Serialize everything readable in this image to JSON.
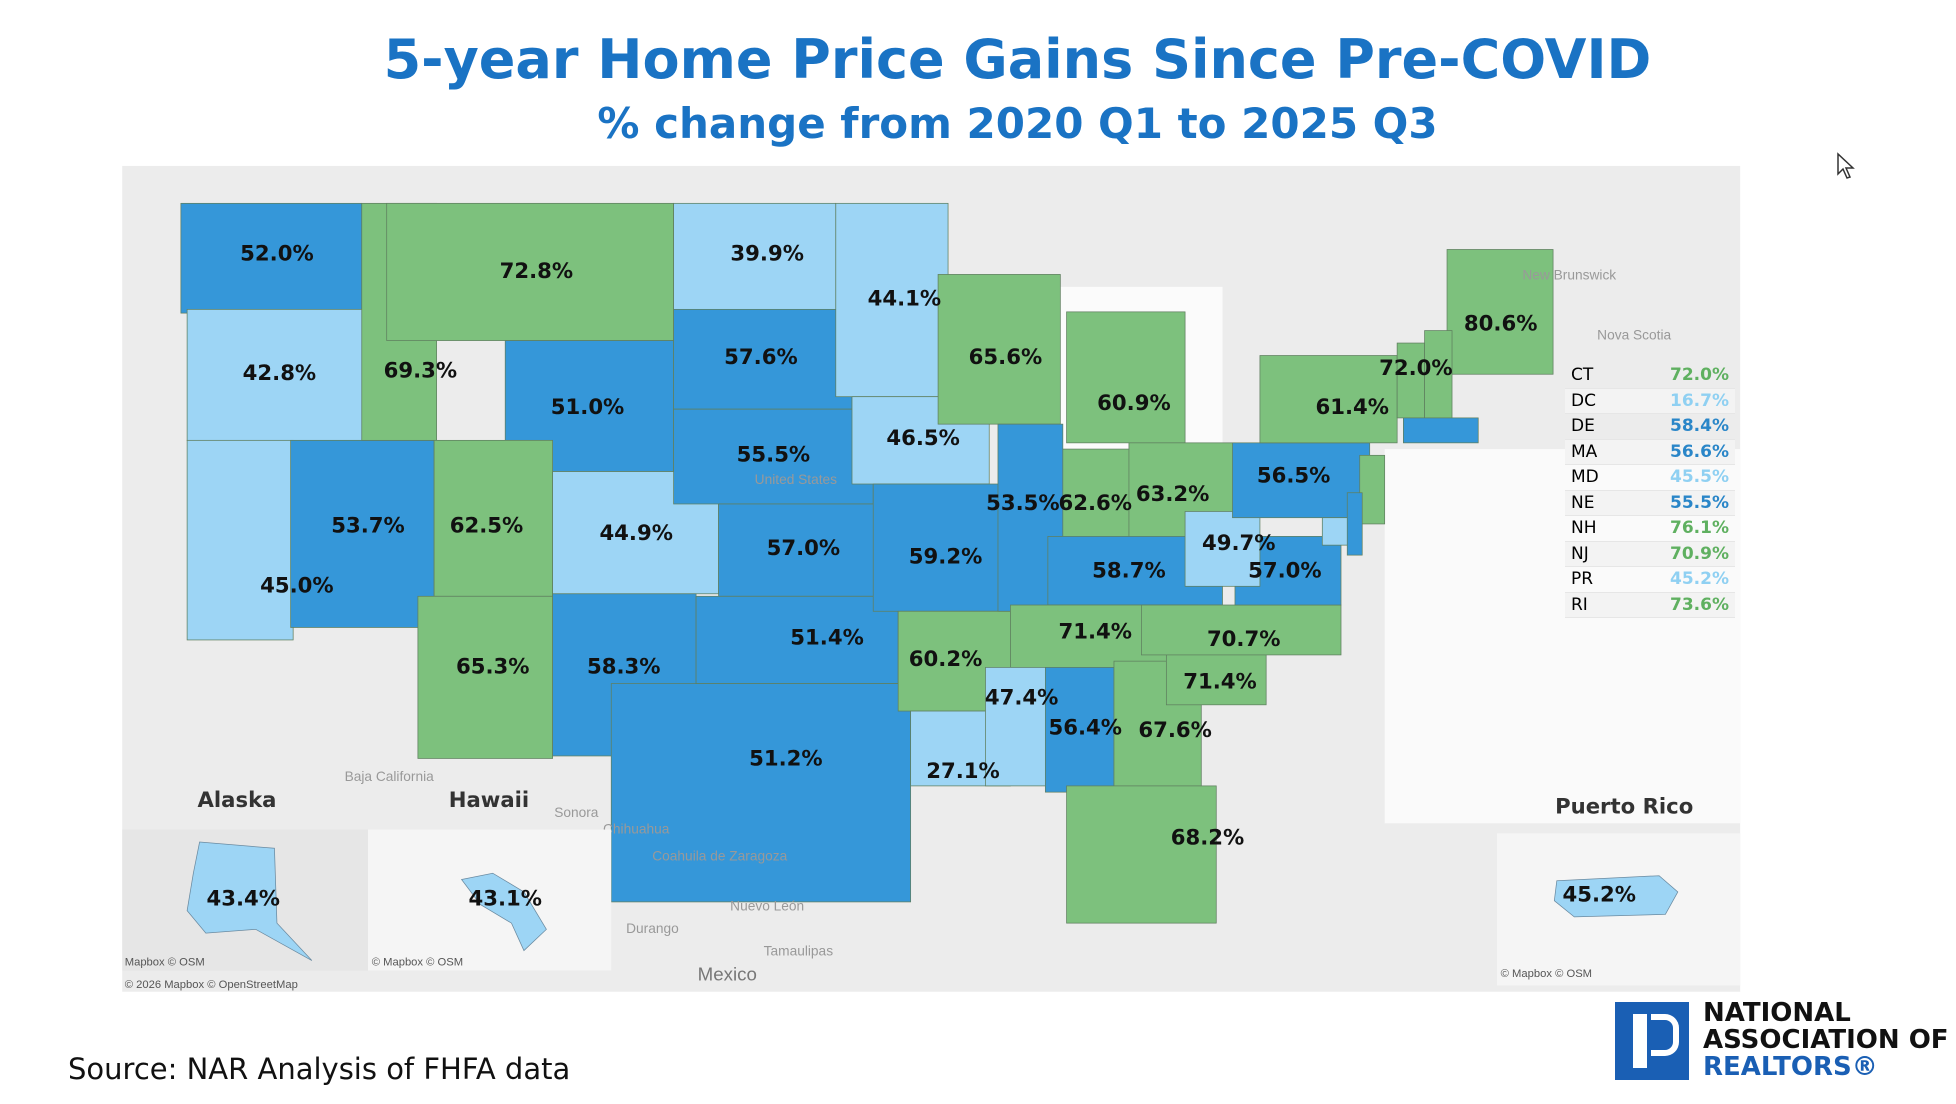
{
  "title": "5-year Home Price Gains Since Pre-COVID",
  "subtitle": "% change from 2020 Q1 to 2025 Q3",
  "colors": {
    "title": "#1a73c4",
    "high_green": "#7dc17d",
    "mid_blue": "#3597d9",
    "low_lightblue": "#9dd5f5"
  },
  "states": [
    {
      "code": "WA",
      "value": "52.0%",
      "tier": "mid"
    },
    {
      "code": "OR",
      "value": "42.8%",
      "tier": "low"
    },
    {
      "code": "CA",
      "value": "45.0%",
      "tier": "low"
    },
    {
      "code": "NV",
      "value": "53.7%",
      "tier": "mid"
    },
    {
      "code": "ID",
      "value": "69.3%",
      "tier": "high"
    },
    {
      "code": "MT",
      "value": "72.8%",
      "tier": "high"
    },
    {
      "code": "WY",
      "value": "51.0%",
      "tier": "mid"
    },
    {
      "code": "UT",
      "value": "62.5%",
      "tier": "high"
    },
    {
      "code": "AZ",
      "value": "65.3%",
      "tier": "high"
    },
    {
      "code": "CO",
      "value": "44.9%",
      "tier": "low"
    },
    {
      "code": "NM",
      "value": "58.3%",
      "tier": "mid"
    },
    {
      "code": "ND",
      "value": "39.9%",
      "tier": "low"
    },
    {
      "code": "SD",
      "value": "57.6%",
      "tier": "mid"
    },
    {
      "code": "NE",
      "value": "55.5%",
      "tier": "mid"
    },
    {
      "code": "KS",
      "value": "57.0%",
      "tier": "mid"
    },
    {
      "code": "OK",
      "value": "51.4%",
      "tier": "mid"
    },
    {
      "code": "TX",
      "value": "51.2%",
      "tier": "mid"
    },
    {
      "code": "MN",
      "value": "44.1%",
      "tier": "low"
    },
    {
      "code": "IA",
      "value": "46.5%",
      "tier": "low"
    },
    {
      "code": "MO",
      "value": "59.2%",
      "tier": "mid"
    },
    {
      "code": "AR",
      "value": "60.2%",
      "tier": "high"
    },
    {
      "code": "LA",
      "value": "27.1%",
      "tier": "low"
    },
    {
      "code": "WI",
      "value": "65.6%",
      "tier": "high"
    },
    {
      "code": "IL",
      "value": "53.5%",
      "tier": "mid"
    },
    {
      "code": "MI",
      "value": "60.9%",
      "tier": "high"
    },
    {
      "code": "IN",
      "value": "62.6%",
      "tier": "high"
    },
    {
      "code": "OH",
      "value": "63.2%",
      "tier": "high"
    },
    {
      "code": "KY",
      "value": "58.7%",
      "tier": "mid"
    },
    {
      "code": "TN",
      "value": "71.4%",
      "tier": "high"
    },
    {
      "code": "MS",
      "value": "47.4%",
      "tier": "low"
    },
    {
      "code": "AL",
      "value": "56.4%",
      "tier": "mid"
    },
    {
      "code": "GA",
      "value": "67.6%",
      "tier": "high"
    },
    {
      "code": "FL",
      "value": "68.2%",
      "tier": "high"
    },
    {
      "code": "SC",
      "value": "71.4%",
      "tier": "high"
    },
    {
      "code": "NC",
      "value": "70.7%",
      "tier": "high"
    },
    {
      "code": "VA",
      "value": "57.0%",
      "tier": "mid"
    },
    {
      "code": "WV",
      "value": "49.7%",
      "tier": "low"
    },
    {
      "code": "PA",
      "value": "56.5%",
      "tier": "mid"
    },
    {
      "code": "NY",
      "value": "61.4%",
      "tier": "high"
    },
    {
      "code": "VT",
      "value": "72.0%",
      "tier": "high"
    },
    {
      "code": "ME",
      "value": "80.6%",
      "tier": "high"
    },
    {
      "code": "NH",
      "value": "",
      "tier": "high"
    },
    {
      "code": "MA",
      "value": "",
      "tier": "mid"
    },
    {
      "code": "NJ",
      "value": "",
      "tier": "high"
    },
    {
      "code": "MD",
      "value": "",
      "tier": "low"
    },
    {
      "code": "DE",
      "value": "",
      "tier": "mid"
    }
  ],
  "insets": {
    "alaska": {
      "title": "Alaska",
      "value": "43.4%",
      "tier": "low",
      "credit": "Mapbox © OSM"
    },
    "hawaii": {
      "title": "Hawaii",
      "value": "43.1%",
      "tier": "low",
      "credit": "© Mapbox © OSM"
    },
    "puerto_rico": {
      "title": "Puerto Rico",
      "value": "45.2%",
      "tier": "low",
      "credit": "© Mapbox © OSM"
    }
  },
  "map_credit": "© 2026 Mapbox © OpenStreetMap",
  "geo_labels": [
    "New Brunswick",
    "Nova Scotia",
    "Baja California",
    "Sonora",
    "Chihuahua",
    "Coahuila de Zaragoza",
    "Nuevo León",
    "Durango",
    "Tamaulipas",
    "Mexico",
    "United States"
  ],
  "legend": [
    {
      "code": "CT",
      "value": "72.0%",
      "tier": "high"
    },
    {
      "code": "DC",
      "value": "16.7%",
      "tier": "low"
    },
    {
      "code": "DE",
      "value": "58.4%",
      "tier": "mid"
    },
    {
      "code": "MA",
      "value": "56.6%",
      "tier": "mid"
    },
    {
      "code": "MD",
      "value": "45.5%",
      "tier": "low"
    },
    {
      "code": "NE",
      "value": "55.5%",
      "tier": "mid"
    },
    {
      "code": "NH",
      "value": "76.1%",
      "tier": "high"
    },
    {
      "code": "NJ",
      "value": "70.9%",
      "tier": "high"
    },
    {
      "code": "PR",
      "value": "45.2%",
      "tier": "low"
    },
    {
      "code": "RI",
      "value": "73.6%",
      "tier": "high"
    }
  ],
  "source": "Source: NAR Analysis of FHFA data",
  "logo": {
    "line1": "NATIONAL",
    "line2": "ASSOCIATION OF",
    "line3": "REALTORS®"
  }
}
